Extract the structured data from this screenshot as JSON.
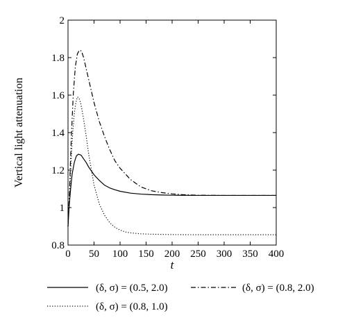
{
  "chart_data": {
    "type": "line",
    "xlabel": "t",
    "ylabel": "Vertical light attenuation",
    "xlim": [
      0,
      400
    ],
    "ylim": [
      0.8,
      2.0
    ],
    "xticks": [
      0,
      50,
      100,
      150,
      200,
      250,
      300,
      350,
      400
    ],
    "yticks": [
      0.8,
      1.0,
      1.2,
      1.4,
      1.6,
      1.8,
      2.0
    ],
    "xtick_labels": [
      "0",
      "50",
      "100",
      "150",
      "200",
      "250",
      "300",
      "350",
      "400"
    ],
    "ytick_labels": [
      "0.8",
      "1",
      "1.2",
      "1.4",
      "1.6",
      "1.8",
      "2"
    ],
    "grid": false,
    "legend_position": "bottom",
    "series": [
      {
        "name": "(δ, σ) = (0.5, 2.0)",
        "style": "solid",
        "color": "#000000",
        "x": [
          0,
          2,
          5,
          8,
          12,
          16,
          20,
          25,
          30,
          35,
          40,
          45,
          50,
          60,
          70,
          80,
          90,
          100,
          120,
          140,
          160,
          180,
          200,
          250,
          300,
          350,
          400
        ],
        "y": [
          0.9,
          1.0,
          1.1,
          1.18,
          1.24,
          1.275,
          1.285,
          1.28,
          1.26,
          1.24,
          1.215,
          1.195,
          1.175,
          1.145,
          1.12,
          1.105,
          1.095,
          1.087,
          1.077,
          1.072,
          1.069,
          1.067,
          1.066,
          1.065,
          1.065,
          1.065,
          1.065
        ]
      },
      {
        "name": "(δ, σ) = (0.8, 2.0)",
        "style": "dashdot",
        "color": "#000000",
        "x": [
          0,
          3,
          6,
          10,
          14,
          18,
          22,
          26,
          30,
          35,
          40,
          50,
          60,
          70,
          80,
          90,
          100,
          120,
          140,
          160,
          180,
          200,
          220,
          250,
          300,
          350,
          400
        ],
        "y": [
          0.9,
          1.1,
          1.35,
          1.6,
          1.75,
          1.82,
          1.84,
          1.835,
          1.8,
          1.74,
          1.68,
          1.56,
          1.46,
          1.38,
          1.31,
          1.25,
          1.21,
          1.15,
          1.11,
          1.09,
          1.08,
          1.073,
          1.069,
          1.066,
          1.065,
          1.065,
          1.065
        ]
      },
      {
        "name": "(δ, σ) = (0.8, 1.0)",
        "style": "dotted",
        "color": "#000000",
        "x": [
          0,
          3,
          6,
          9,
          12,
          15,
          18,
          21,
          24,
          27,
          30,
          35,
          40,
          50,
          60,
          70,
          80,
          90,
          100,
          110,
          120,
          140,
          160,
          180,
          200,
          250,
          300,
          350,
          400
        ],
        "y": [
          0.9,
          1.05,
          1.25,
          1.4,
          1.5,
          1.56,
          1.59,
          1.585,
          1.56,
          1.52,
          1.47,
          1.38,
          1.28,
          1.12,
          1.02,
          0.96,
          0.92,
          0.895,
          0.88,
          0.87,
          0.865,
          0.86,
          0.858,
          0.857,
          0.856,
          0.855,
          0.855,
          0.855,
          0.855
        ]
      }
    ]
  }
}
